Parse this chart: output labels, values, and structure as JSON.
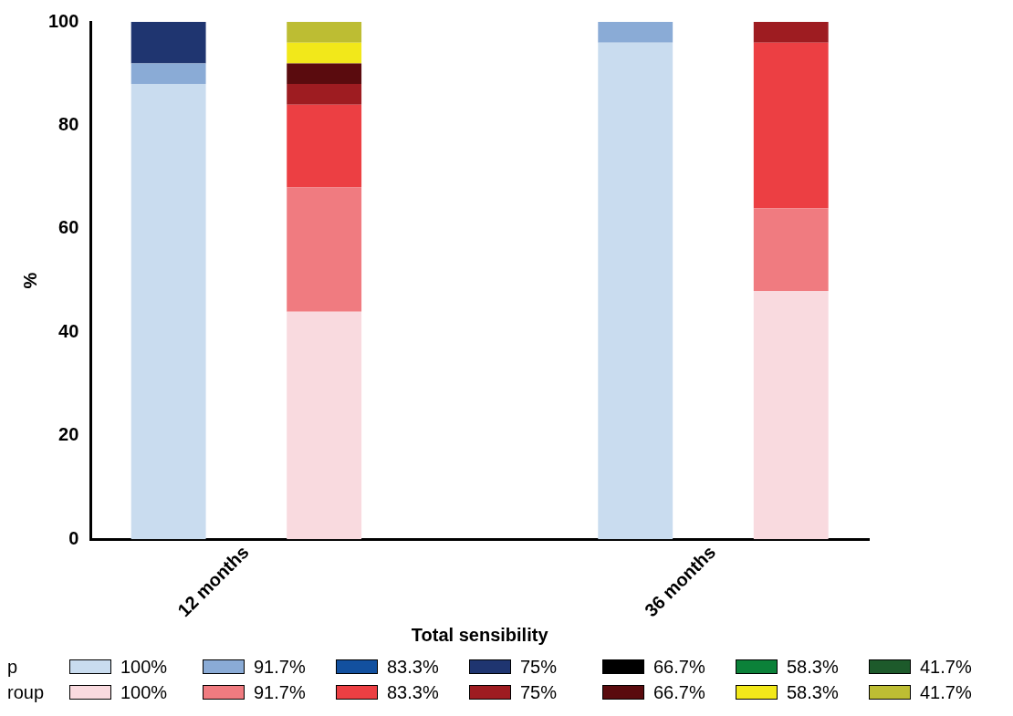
{
  "chart_data": {
    "type": "bar",
    "stacked": true,
    "xlabel": "Total sensibility",
    "ylabel": "%",
    "categories": [
      "12 months",
      null,
      null,
      "36 months",
      null
    ],
    "ylim": [
      0,
      100
    ],
    "yticks": [
      0,
      20,
      40,
      60,
      80,
      100
    ],
    "grid": false,
    "legend": "bottom",
    "annotations": [
      "p",
      "roup"
    ],
    "series": [
      {
        "name": "100%",
        "color": "#c9dcef",
        "values": [
          88,
          null,
          null,
          96,
          null
        ]
      },
      {
        "name": "91.7%",
        "color": "#8aabd6",
        "values": [
          4,
          null,
          null,
          4,
          null
        ]
      },
      {
        "name": "83.3%",
        "color": "#12509f",
        "values": [
          0,
          null,
          null,
          0,
          null
        ]
      },
      {
        "name": "75%",
        "color": "#1f3570",
        "values": [
          8,
          null,
          null,
          0,
          null
        ]
      },
      {
        "name": "66.7%",
        "color": "#000000",
        "values": [
          0,
          null,
          null,
          0,
          null
        ]
      },
      {
        "name": "58.3%",
        "color": "#0b8139",
        "values": [
          0,
          null,
          null,
          0,
          null
        ]
      },
      {
        "name": "41.7%",
        "color": "#1d5a2b",
        "values": [
          0,
          null,
          null,
          0,
          null
        ]
      },
      {
        "name": "100%",
        "color": "#f9dadf",
        "values": [
          null,
          44,
          null,
          null,
          48
        ]
      },
      {
        "name": "91.7%",
        "color": "#f07b80",
        "values": [
          null,
          24,
          null,
          null,
          16
        ]
      },
      {
        "name": "83.3%",
        "color": "#ec3f43",
        "values": [
          null,
          16,
          null,
          null,
          32
        ]
      },
      {
        "name": "75%",
        "color": "#9e1c21",
        "values": [
          null,
          4,
          null,
          null,
          4
        ]
      },
      {
        "name": "66.7%",
        "color": "#5a0b0e",
        "values": [
          null,
          4,
          null,
          null,
          0
        ]
      },
      {
        "name": "58.3%",
        "color": "#f2e81a",
        "values": [
          null,
          4,
          null,
          null,
          0
        ]
      },
      {
        "name": "41.7%",
        "color": "#bdbd33",
        "values": [
          null,
          4,
          null,
          null,
          0
        ]
      }
    ]
  }
}
